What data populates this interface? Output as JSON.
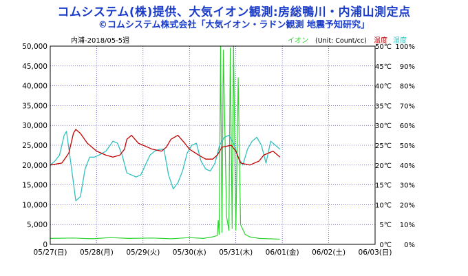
{
  "header": {
    "title": "コムシステム(株)提供、大気イオン観測:房総鴨川・内浦山測定点",
    "subtitle": "©コムシステム株式会社「大気イオン・ラドン観測 地震予知研究」"
  },
  "chart_data": {
    "type": "line",
    "period_label": "内浦-2018/05-5週",
    "unit_label": "(Unit: Count/cc)",
    "legend": {
      "ion": "イオン",
      "temp": "温度",
      "humidity": "湿度"
    },
    "colors": {
      "ion": "#2fd12f",
      "temp": "#c00000",
      "humidity": "#30c0c0",
      "grid": "#2020b0",
      "axis": "#000000"
    },
    "x_range": [
      "2018-05-27",
      "2018-06-03"
    ],
    "x_ticks": [
      "05/27(日)",
      "05/28(月)",
      "05/29(火)",
      "05/30(水)",
      "05/31(木)",
      "06/01(金)",
      "06/02(土)",
      "06/03(日)"
    ],
    "y_left": {
      "min": 0,
      "max": 50000,
      "ticks": [
        "0",
        "5,000",
        "10,000",
        "15,000",
        "20,000",
        "25,000",
        "30,000",
        "35,000",
        "40,000",
        "45,000",
        "50,000"
      ]
    },
    "y_right_temp": {
      "min": 0,
      "max": 50,
      "ticks": [
        "0℃",
        "5℃",
        "10℃",
        "15℃",
        "20℃",
        "25℃",
        "30℃",
        "35℃",
        "40℃",
        "45℃",
        "50℃"
      ]
    },
    "y_right_hum": {
      "min": 0,
      "max": 100,
      "ticks": [
        "0%",
        "10%",
        "20%",
        "30%",
        "40%",
        "50%",
        "60%",
        "70%",
        "80%",
        "90%",
        "100%"
      ]
    },
    "grid": true,
    "series": [
      {
        "name": "温度",
        "axis": "temp_c",
        "x": [
          0.0,
          0.25,
          0.4,
          0.5,
          0.55,
          0.65,
          0.8,
          1.0,
          1.2,
          1.35,
          1.5,
          1.6,
          1.65,
          1.75,
          1.9,
          2.0,
          2.2,
          2.4,
          2.5,
          2.6,
          2.75,
          2.9,
          3.0,
          3.2,
          3.35,
          3.5,
          3.6,
          3.7,
          3.9,
          4.0,
          4.1,
          4.3,
          4.5,
          4.6,
          4.8,
          4.95
        ],
        "y": [
          20.0,
          20.5,
          23.0,
          28.0,
          29.0,
          28.0,
          25.5,
          23.5,
          22.5,
          22.0,
          22.5,
          24.0,
          26.5,
          27.5,
          25.5,
          25.0,
          24.0,
          23.5,
          24.5,
          26.5,
          27.5,
          25.5,
          24.0,
          22.5,
          21.5,
          21.5,
          22.5,
          24.5,
          25.0,
          23.5,
          20.5,
          20.0,
          21.0,
          22.5,
          23.5,
          22.0
        ]
      },
      {
        "name": "湿度",
        "axis": "hum_pct",
        "x": [
          0.0,
          0.1,
          0.2,
          0.3,
          0.35,
          0.45,
          0.55,
          0.65,
          0.75,
          0.85,
          0.95,
          1.05,
          1.2,
          1.35,
          1.45,
          1.55,
          1.65,
          1.75,
          1.85,
          1.95,
          2.05,
          2.15,
          2.25,
          2.35,
          2.45,
          2.55,
          2.65,
          2.75,
          2.85,
          2.95,
          3.05,
          3.15,
          3.25,
          3.35,
          3.45,
          3.55,
          3.65,
          3.75,
          3.85,
          3.95,
          4.05,
          4.15,
          4.25,
          4.35,
          4.45,
          4.55,
          4.65,
          4.75,
          4.85,
          4.95
        ],
        "y": [
          40,
          42,
          45,
          55,
          57,
          40,
          22,
          24,
          38,
          44,
          44,
          45,
          47,
          52,
          51,
          45,
          36,
          35,
          34,
          35,
          40,
          45,
          47,
          48,
          48,
          35,
          28,
          31,
          37,
          46,
          50,
          51,
          42,
          38,
          37,
          41,
          50,
          54,
          55,
          51,
          44,
          40,
          48,
          52,
          54,
          50,
          41,
          52,
          50,
          48
        ]
      },
      {
        "name": "イオン",
        "axis": "count",
        "x": [
          0.0,
          0.5,
          0.9,
          1.3,
          1.7,
          2.2,
          2.6,
          3.0,
          3.3,
          3.5,
          3.6,
          3.62,
          3.64,
          3.67,
          3.7,
          3.73,
          3.8,
          3.85,
          3.88,
          3.92,
          3.95,
          4.0,
          4.05,
          4.1,
          4.2,
          4.3,
          4.5,
          4.7,
          4.95
        ],
        "y": [
          1500,
          1600,
          1400,
          1700,
          1500,
          1600,
          1400,
          1700,
          1500,
          1900,
          2200,
          6000,
          2500,
          50000,
          3000,
          49000,
          7000,
          3500,
          49500,
          4000,
          50000,
          3500,
          42000,
          5000,
          2500,
          1900,
          1500,
          1400,
          1300
        ]
      }
    ]
  }
}
